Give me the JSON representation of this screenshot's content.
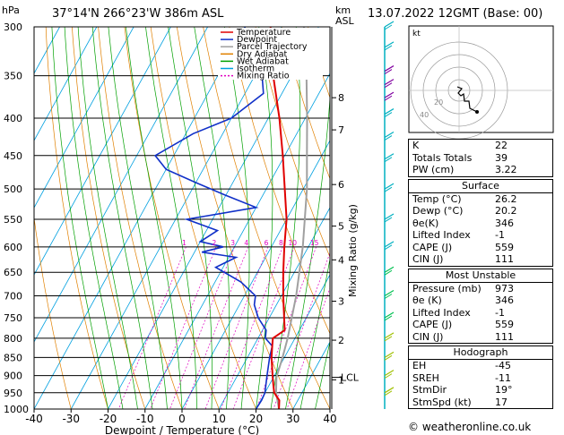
{
  "header": {
    "location": "37°14'N  266°23'W  386m  ASL",
    "datetime": "13.07.2022  12GMT  (Base: 00)",
    "hpa_label": "hPa",
    "km_label": "km",
    "asl_label": "ASL"
  },
  "chart_data": {
    "type": "skew-t",
    "xlabel": "Dewpoint / Temperature (°C)",
    "ylabel_right": "Mixing Ratio (g/kg)",
    "x_ticks": [
      -40,
      -30,
      -20,
      -10,
      0,
      10,
      20,
      30,
      40
    ],
    "pressure_levels": [
      300,
      350,
      400,
      450,
      500,
      550,
      600,
      650,
      700,
      750,
      800,
      850,
      900,
      950,
      1000
    ],
    "km_ticks": [
      {
        "label": "8",
        "p": 375
      },
      {
        "label": "7",
        "p": 415
      },
      {
        "label": "6",
        "p": 493
      },
      {
        "label": "5",
        "p": 562
      },
      {
        "label": "4",
        "p": 625
      },
      {
        "label": "3",
        "p": 712
      },
      {
        "label": "2",
        "p": 805
      },
      {
        "label": "1",
        "p": 912
      }
    ],
    "lcl_label": "LCL",
    "lcl_p": 905,
    "mixing_ratio_labels": [
      "1",
      "2",
      "3",
      "4",
      "6",
      "8",
      "10",
      "15",
      "20",
      "25"
    ],
    "legend": [
      {
        "name": "Temperature",
        "color": "#e00000"
      },
      {
        "name": "Dewpoint",
        "color": "#1030c8"
      },
      {
        "name": "Parcel Trajectory",
        "color": "#a0a0a0"
      },
      {
        "name": "Dry Adiabat",
        "color": "#e08000"
      },
      {
        "name": "Wet Adiabat",
        "color": "#00a000"
      },
      {
        "name": "Isotherm",
        "color": "#00a0e0"
      },
      {
        "name": "Mixing Ratio",
        "color": "#e000c0"
      }
    ],
    "temperature": [
      [
        1000,
        26.2
      ],
      [
        973,
        25
      ],
      [
        950,
        22.5
      ],
      [
        925,
        21
      ],
      [
        900,
        19.5
      ],
      [
        850,
        16.5
      ],
      [
        820,
        15
      ],
      [
        800,
        14
      ],
      [
        780,
        16
      ],
      [
        750,
        14
      ],
      [
        700,
        10.5
      ],
      [
        650,
        7
      ],
      [
        600,
        3.5
      ],
      [
        550,
        0
      ],
      [
        500,
        -5
      ],
      [
        450,
        -10.5
      ],
      [
        400,
        -17
      ],
      [
        350,
        -25
      ],
      [
        300,
        -33
      ]
    ],
    "dewpoint": [
      [
        1000,
        20
      ],
      [
        973,
        20.2
      ],
      [
        950,
        20
      ],
      [
        925,
        19
      ],
      [
        900,
        18
      ],
      [
        850,
        16
      ],
      [
        820,
        15
      ],
      [
        800,
        12
      ],
      [
        780,
        11
      ],
      [
        750,
        7
      ],
      [
        720,
        4
      ],
      [
        700,
        3
      ],
      [
        670,
        -3
      ],
      [
        640,
        -12
      ],
      [
        620,
        -8
      ],
      [
        610,
        -18
      ],
      [
        600,
        -13
      ],
      [
        590,
        -20
      ],
      [
        570,
        -17
      ],
      [
        550,
        -27
      ],
      [
        530,
        -10
      ],
      [
        510,
        -20
      ],
      [
        490,
        -30
      ],
      [
        470,
        -40
      ],
      [
        450,
        -45
      ],
      [
        420,
        -38
      ],
      [
        400,
        -30
      ],
      [
        370,
        -25
      ],
      [
        350,
        -28
      ],
      [
        320,
        -35
      ],
      [
        300,
        -40
      ]
    ],
    "parcel": [
      [
        1000,
        26.2
      ],
      [
        950,
        23
      ],
      [
        905,
        20.8
      ],
      [
        850,
        19.5
      ],
      [
        800,
        18
      ],
      [
        700,
        14
      ],
      [
        600,
        8.5
      ],
      [
        500,
        1
      ],
      [
        450,
        -4
      ],
      [
        400,
        -9.5
      ],
      [
        350,
        -16
      ],
      [
        300,
        -24
      ]
    ]
  },
  "hodograph": {
    "label": "kt",
    "ring_labels": [
      "40",
      "20"
    ]
  },
  "indices": [
    {
      "label": "K",
      "value": "22"
    },
    {
      "label": "Totals Totals",
      "value": "39"
    },
    {
      "label": "PW (cm)",
      "value": "3.22"
    }
  ],
  "surface": {
    "title": "Surface",
    "rows": [
      {
        "label": "Temp (°C)",
        "value": "26.2"
      },
      {
        "label": "Dewp (°C)",
        "value": "20.2"
      },
      {
        "label": "θe(K)",
        "value": "346"
      },
      {
        "label": "Lifted Index",
        "value": "-1"
      },
      {
        "label": "CAPE (J)",
        "value": "559"
      },
      {
        "label": "CIN (J)",
        "value": "111"
      }
    ]
  },
  "most_unstable": {
    "title": "Most Unstable",
    "rows": [
      {
        "label": "Pressure (mb)",
        "value": "973"
      },
      {
        "label": "θe (K)",
        "value": "346"
      },
      {
        "label": "Lifted Index",
        "value": "-1"
      },
      {
        "label": "CAPE (J)",
        "value": "559"
      },
      {
        "label": "CIN (J)",
        "value": "111"
      }
    ]
  },
  "hodograph_table": {
    "title": "Hodograph",
    "rows": [
      {
        "label": "EH",
        "value": "-45"
      },
      {
        "label": "SREH",
        "value": "-11"
      },
      {
        "label": "StmDir",
        "value": "19°"
      },
      {
        "label": "StmSpd (kt)",
        "value": "17"
      }
    ]
  },
  "footer": "© weatheronline.co.uk"
}
